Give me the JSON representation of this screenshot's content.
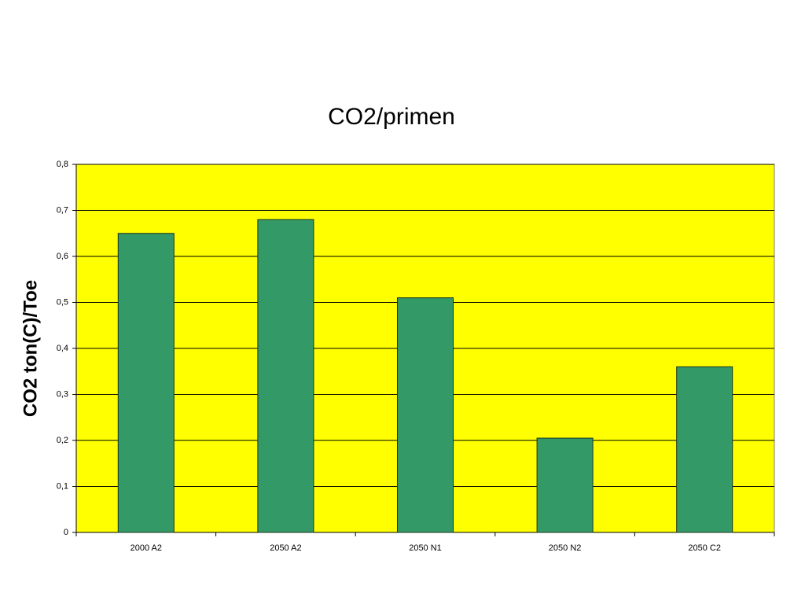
{
  "chart_data": {
    "type": "bar",
    "title": "CO2/primen",
    "y_label": "CO2 ton(C)/Toe",
    "categories": [
      "2000 A2",
      "2050 A2",
      "2050 N1",
      "2050 N2",
      "2050 C2"
    ],
    "values": [
      0.65,
      0.68,
      0.51,
      0.205,
      0.36
    ],
    "color": "#339966",
    "plot_background": "#ffff00",
    "ylim": [
      0,
      0.8
    ],
    "yticks": [
      0,
      {
        "value": 0.1,
        "label": "0,1"
      },
      {
        "value": 0.2,
        "label": "0,2"
      },
      {
        "value": 0.3,
        "label": "0,3"
      },
      {
        "value": 0.4,
        "label": "0,4"
      },
      {
        "value": 0.5,
        "label": "0,5"
      },
      {
        "value": 0.6,
        "label": "0,6"
      },
      {
        "value": 0.7,
        "label": "0,7"
      },
      {
        "value": 0.8,
        "label": "0,8"
      }
    ],
    "grid": true
  }
}
